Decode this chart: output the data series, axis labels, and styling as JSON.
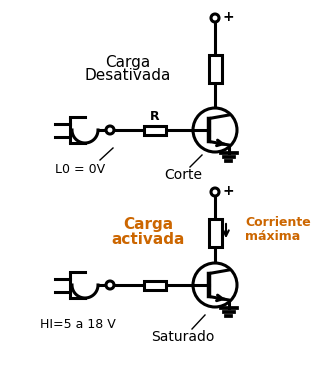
{
  "bg_color": "#ffffff",
  "line_color": "#000000",
  "orange_color": "#cc6600",
  "title_top1": "Carga",
  "title_top2": "Desativada",
  "title_bot1": "Carga",
  "title_bot2": "activada",
  "label_L0": "L0 = 0V",
  "label_corte": "Corte",
  "label_HI": "HI=5 a 18 V",
  "label_sat": "Saturado",
  "label_corriente1": "Corriente",
  "label_corriente2": "máxima",
  "label_R": "R",
  "figsize": [
    3.2,
    3.69
  ],
  "dpi": 100
}
